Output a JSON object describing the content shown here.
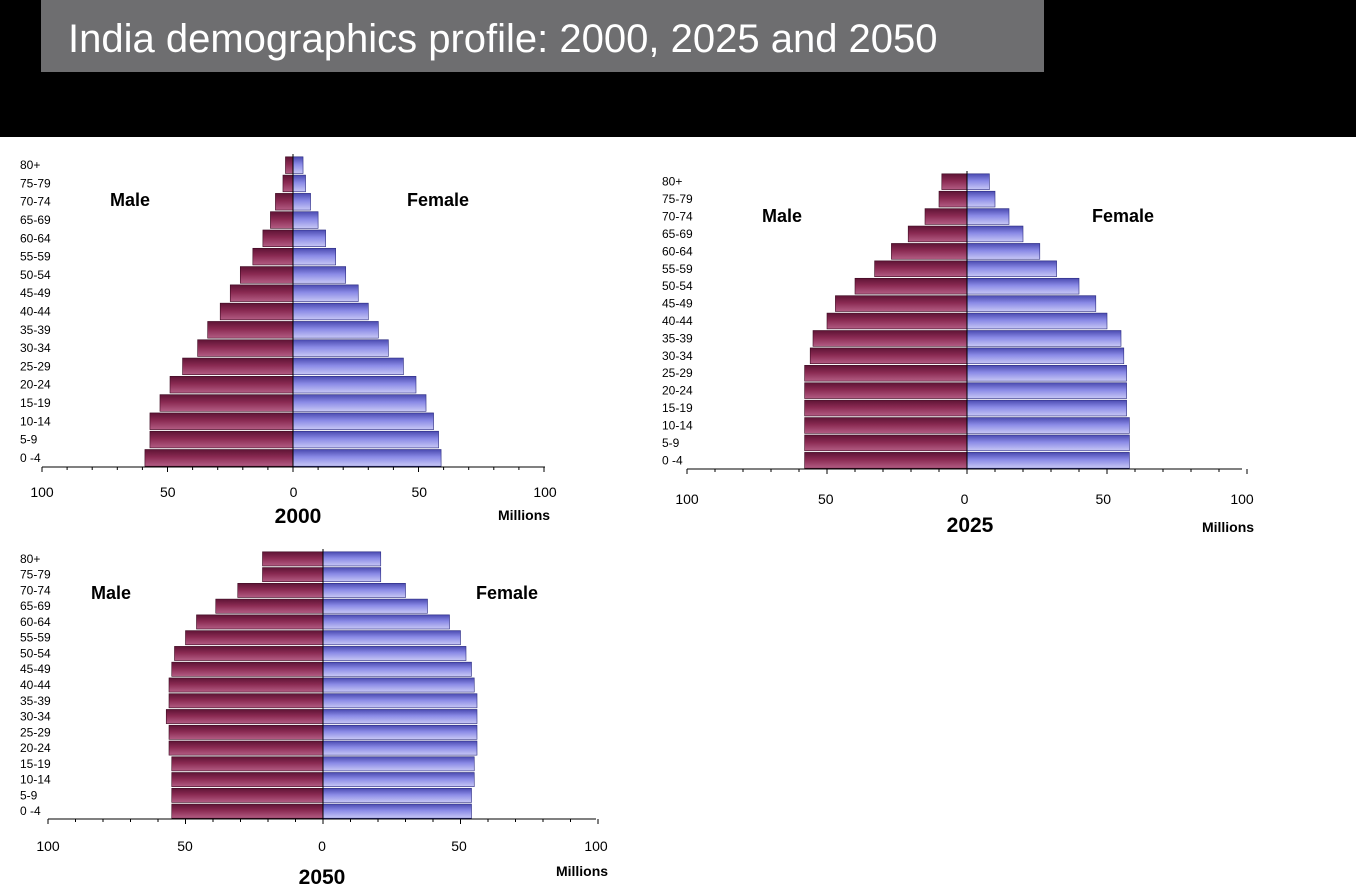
{
  "page_title": "India demographics profile: 2000, 2025 and 2050",
  "colors": {
    "male": "#8a2a52",
    "female": "#8a8ae6",
    "title_box": "#6e6e70",
    "header": "#000000"
  },
  "chart_data": [
    {
      "type": "bar",
      "subtype": "population-pyramid",
      "title": "2000",
      "unit_label": "Millions",
      "male_label": "Male",
      "female_label": "Female",
      "categories": [
        "0 -4",
        "5-9",
        "10-14",
        "15-19",
        "20-24",
        "25-29",
        "30-34",
        "35-39",
        "40-44",
        "45-49",
        "50-54",
        "55-59",
        "60-64",
        "65-69",
        "70-74",
        "75-79",
        "80+"
      ],
      "series": [
        {
          "name": "Male",
          "values": [
            59,
            57,
            57,
            53,
            49,
            44,
            38,
            34,
            29,
            25,
            21,
            16,
            12,
            9,
            7,
            4,
            3
          ]
        },
        {
          "name": "Female",
          "values": [
            59,
            58,
            56,
            53,
            49,
            44,
            38,
            34,
            30,
            26,
            21,
            17,
            13,
            10,
            7,
            5,
            4
          ]
        }
      ],
      "x_ticks": [
        "100",
        "50",
        "0",
        "50",
        "100"
      ],
      "xlim": [
        -100,
        100
      ],
      "grid": false
    },
    {
      "type": "bar",
      "subtype": "population-pyramid",
      "title": "2025",
      "unit_label": "Millions",
      "male_label": "Male",
      "female_label": "Female",
      "categories": [
        "0 -4",
        "5-9",
        "10-14",
        "15-19",
        "20-24",
        "25-29",
        "30-34",
        "35-39",
        "40-44",
        "45-49",
        "50-54",
        "55-59",
        "60-64",
        "65-69",
        "70-74",
        "75-79",
        "80+"
      ],
      "series": [
        {
          "name": "Male",
          "values": [
            58,
            58,
            58,
            58,
            58,
            58,
            56,
            55,
            50,
            47,
            40,
            33,
            27,
            21,
            15,
            10,
            9
          ]
        },
        {
          "name": "Female",
          "values": [
            58,
            58,
            58,
            57,
            57,
            57,
            56,
            55,
            50,
            46,
            40,
            32,
            26,
            20,
            15,
            10,
            8
          ]
        }
      ],
      "x_ticks": [
        "100",
        "50",
        "0",
        "50",
        "100"
      ],
      "xlim": [
        -100,
        100
      ],
      "grid": false
    },
    {
      "type": "bar",
      "subtype": "population-pyramid",
      "title": "2050",
      "unit_label": "Millions",
      "male_label": "Male",
      "female_label": "Female",
      "categories": [
        "0 -4",
        "5-9",
        "10-14",
        "15-19",
        "20-24",
        "25-29",
        "30-34",
        "35-39",
        "40-44",
        "45-49",
        "50-54",
        "55-59",
        "60-64",
        "65-69",
        "70-74",
        "75-79",
        "80+"
      ],
      "series": [
        {
          "name": "Male",
          "values": [
            55,
            55,
            55,
            55,
            56,
            56,
            57,
            56,
            56,
            55,
            54,
            50,
            46,
            39,
            31,
            22,
            22
          ]
        },
        {
          "name": "Female",
          "values": [
            54,
            54,
            55,
            55,
            56,
            56,
            56,
            56,
            55,
            54,
            52,
            50,
            46,
            38,
            30,
            21,
            21
          ]
        }
      ],
      "x_ticks": [
        "100",
        "50",
        "0",
        "50",
        "100"
      ],
      "xlim": [
        -100,
        100
      ],
      "grid": false
    }
  ]
}
